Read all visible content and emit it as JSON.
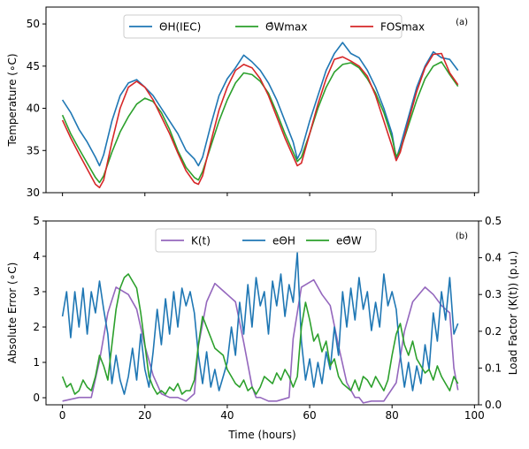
{
  "chart_data": [
    {
      "type": "line",
      "panel_label": "(a)",
      "title": "",
      "xlabel": "",
      "ylabel": "Temperature (∘C)",
      "xlim": [
        -4,
        101
      ],
      "ylim": [
        30,
        52
      ],
      "xticks": [
        0,
        20,
        40,
        60,
        80,
        100
      ],
      "yticks": [
        30,
        35,
        40,
        45,
        50
      ],
      "grid": false,
      "legend_position": "top-center",
      "legend": [
        {
          "label": "ΘH(IEC)",
          "color": "#1f77b4"
        },
        {
          "label": "Θ̂Wmax",
          "color": "#2ca02c"
        },
        {
          "label": "FOSmax",
          "color": "#d62728"
        }
      ],
      "series": [
        {
          "name": "ΘH(IEC)",
          "color": "#1f77b4",
          "x": [
            0,
            2,
            4,
            6,
            8,
            9,
            10,
            12,
            14,
            16,
            18,
            20,
            22,
            24,
            26,
            28,
            30,
            32,
            33,
            34,
            36,
            38,
            40,
            42,
            44,
            46,
            48,
            50,
            52,
            54,
            56,
            57,
            58,
            60,
            62,
            64,
            66,
            68,
            70,
            72,
            74,
            76,
            78,
            80,
            81,
            82,
            84,
            86,
            88,
            90,
            92,
            94,
            96
          ],
          "y": [
            41,
            39.5,
            37.5,
            36,
            34.2,
            33.2,
            34.5,
            38.5,
            41.5,
            43,
            43.4,
            42.5,
            41.5,
            40,
            38.5,
            37,
            35,
            34,
            33.2,
            34.2,
            38,
            41.5,
            43.5,
            44.8,
            46.3,
            45.5,
            44.5,
            43,
            41,
            38.5,
            36,
            34,
            35,
            38.5,
            41.5,
            44.5,
            46.5,
            47.8,
            46.5,
            46,
            44.5,
            42.5,
            40,
            37,
            34,
            35.5,
            39,
            42.5,
            45,
            46.7,
            46,
            45.8,
            44.5
          ]
        },
        {
          "name": "Θ̂Wmax",
          "color": "#2ca02c",
          "x": [
            0,
            2,
            4,
            6,
            8,
            9,
            10,
            12,
            14,
            16,
            18,
            20,
            22,
            24,
            26,
            28,
            30,
            32,
            33,
            34,
            36,
            38,
            40,
            42,
            44,
            46,
            48,
            50,
            52,
            54,
            56,
            57,
            58,
            60,
            62,
            64,
            66,
            68,
            70,
            72,
            74,
            76,
            78,
            80,
            81,
            82,
            84,
            86,
            88,
            90,
            92,
            94,
            96
          ],
          "y": [
            39.2,
            37,
            35.2,
            33.5,
            31.8,
            31.2,
            32,
            34.8,
            37.2,
            39,
            40.5,
            41.2,
            40.8,
            39.5,
            37.5,
            35,
            33,
            31.8,
            31.5,
            32.5,
            35.5,
            38.5,
            41,
            43,
            44.2,
            44,
            43.2,
            41.8,
            39.5,
            37,
            34.8,
            33.7,
            34.2,
            37,
            40,
            42.5,
            44.3,
            45.2,
            45.4,
            44.8,
            43.5,
            41.8,
            39.5,
            36.5,
            34.3,
            35,
            38,
            41,
            43.5,
            45,
            45.5,
            44,
            42.6
          ]
        },
        {
          "name": "FOSmax",
          "color": "#d62728",
          "x": [
            0,
            2,
            4,
            6,
            8,
            9,
            10,
            12,
            14,
            16,
            18,
            20,
            22,
            24,
            26,
            28,
            30,
            32,
            33,
            34,
            36,
            38,
            40,
            42,
            44,
            46,
            48,
            50,
            52,
            54,
            56,
            57,
            58,
            60,
            62,
            64,
            66,
            68,
            70,
            72,
            74,
            76,
            78,
            80,
            81,
            82,
            84,
            86,
            88,
            90,
            92,
            94,
            96
          ],
          "y": [
            38.6,
            36.5,
            34.6,
            32.8,
            31,
            30.6,
            31.5,
            36,
            40,
            42.5,
            43.2,
            42.5,
            41,
            39,
            37,
            34.7,
            32.6,
            31.2,
            31,
            32,
            36,
            39.8,
            42.5,
            44.5,
            45.2,
            44.8,
            43.5,
            41.5,
            39,
            36.5,
            34.3,
            33.2,
            33.5,
            37,
            40.5,
            43.5,
            45.8,
            46.1,
            45.6,
            45,
            43.8,
            41.5,
            38.5,
            35.5,
            33.8,
            34.8,
            38.5,
            42,
            44.8,
            46.4,
            46.5,
            44.2,
            42.8
          ]
        }
      ]
    },
    {
      "type": "line",
      "panel_label": "(b)",
      "title": "",
      "xlabel": "Time (hours)",
      "ylabel": "Absolute Error (∘C)",
      "ylabel_right": "Load Factor  (K(t)) (p.u.)",
      "xlim": [
        -4,
        101
      ],
      "ylim": [
        -0.2,
        5
      ],
      "ylim_right": [
        0,
        0.5
      ],
      "xticks": [
        0,
        20,
        40,
        60,
        80,
        100
      ],
      "yticks": [
        0,
        1,
        2,
        3,
        4,
        5
      ],
      "yticks_right": [
        "0.0",
        "0.1",
        "0.2",
        "0.3",
        "0.4",
        "0.5"
      ],
      "grid": false,
      "legend_position": "top-center",
      "legend": [
        {
          "label": "K(t)",
          "color": "#9467bd"
        },
        {
          "label": "eΘH",
          "color": "#1f77b4"
        },
        {
          "label": "eΘ̂W",
          "color": "#2ca02c"
        }
      ],
      "series": [
        {
          "name": "K(t)",
          "color": "#9467bd",
          "axis": "right",
          "x": [
            0,
            4,
            7,
            9,
            11,
            13,
            16,
            18,
            20,
            22,
            24,
            26,
            28,
            30,
            32,
            33,
            35,
            37,
            40,
            42,
            44,
            46,
            47,
            48,
            50,
            52,
            55,
            56,
            58,
            61,
            63,
            65,
            67,
            69,
            71,
            72,
            73,
            75,
            78,
            81,
            83,
            85,
            88,
            90,
            92,
            94,
            95,
            96
          ],
          "y": [
            0.01,
            0.02,
            0.02,
            0.12,
            0.25,
            0.32,
            0.3,
            0.26,
            0.16,
            0.08,
            0.03,
            0.02,
            0.02,
            0.01,
            0.03,
            0.16,
            0.28,
            0.33,
            0.3,
            0.28,
            0.17,
            0.05,
            0.02,
            0.02,
            0.01,
            0.01,
            0.02,
            0.18,
            0.32,
            0.34,
            0.3,
            0.27,
            0.16,
            0.06,
            0.02,
            0.02,
            0.005,
            0.01,
            0.01,
            0.06,
            0.2,
            0.28,
            0.32,
            0.3,
            0.27,
            0.25,
            0.1,
            0.04
          ]
        },
        {
          "name": "eΘH",
          "color": "#1f77b4",
          "axis": "left",
          "x": [
            0,
            1,
            2,
            3,
            4,
            5,
            6,
            7,
            8,
            9,
            10,
            11,
            12,
            13,
            14,
            15,
            16,
            17,
            18,
            19,
            20,
            21,
            22,
            23,
            24,
            25,
            26,
            27,
            28,
            29,
            30,
            31,
            32,
            33,
            34,
            35,
            36,
            37,
            38,
            39,
            40,
            41,
            42,
            43,
            44,
            45,
            46,
            47,
            48,
            49,
            50,
            51,
            52,
            53,
            54,
            55,
            56,
            57,
            58,
            59,
            60,
            61,
            62,
            63,
            64,
            65,
            66,
            67,
            68,
            69,
            70,
            71,
            72,
            73,
            74,
            75,
            76,
            77,
            78,
            79,
            80,
            81,
            82,
            83,
            84,
            85,
            86,
            87,
            88,
            89,
            90,
            91,
            92,
            93,
            94,
            95,
            96
          ],
          "y": [
            2.3,
            3.0,
            1.7,
            3.0,
            2.0,
            3.1,
            1.8,
            3.0,
            2.4,
            3.3,
            2.5,
            1.8,
            0.4,
            1.2,
            0.5,
            0.1,
            0.6,
            1.4,
            0.5,
            1.8,
            0.8,
            0.3,
            1.3,
            2.5,
            1.5,
            2.8,
            1.8,
            3.0,
            2.0,
            3.1,
            2.6,
            3.0,
            2.4,
            1.2,
            0.4,
            1.3,
            0.3,
            0.8,
            0.2,
            0.6,
            1.0,
            2.0,
            1.2,
            2.7,
            1.8,
            3.2,
            2.0,
            3.4,
            2.6,
            3.0,
            1.8,
            3.3,
            2.6,
            3.5,
            2.3,
            3.2,
            2.7,
            4.1,
            1.6,
            0.5,
            1.1,
            0.3,
            1.0,
            0.4,
            1.3,
            0.8,
            2.0,
            1.2,
            3.0,
            2.0,
            3.1,
            2.2,
            3.4,
            2.5,
            3.0,
            1.9,
            2.7,
            2.0,
            3.5,
            2.6,
            3.0,
            2.5,
            1.2,
            0.3,
            1.0,
            0.2,
            0.9,
            0.4,
            1.5,
            0.8,
            2.4,
            1.6,
            3.0,
            2.2,
            3.4,
            1.8,
            2.1
          ]
        },
        {
          "name": "eΘ̂W",
          "color": "#2ca02c",
          "axis": "left",
          "x": [
            0,
            1,
            2,
            3,
            4,
            5,
            6,
            7,
            8,
            9,
            10,
            11,
            12,
            13,
            14,
            15,
            16,
            17,
            18,
            19,
            20,
            21,
            22,
            23,
            24,
            25,
            26,
            27,
            28,
            29,
            30,
            31,
            32,
            33,
            34,
            35,
            36,
            37,
            38,
            39,
            40,
            41,
            42,
            43,
            44,
            45,
            46,
            47,
            48,
            49,
            50,
            51,
            52,
            53,
            54,
            55,
            56,
            57,
            58,
            59,
            60,
            61,
            62,
            63,
            64,
            65,
            66,
            67,
            68,
            69,
            70,
            71,
            72,
            73,
            74,
            75,
            76,
            77,
            78,
            79,
            80,
            81,
            82,
            83,
            84,
            85,
            86,
            87,
            88,
            89,
            90,
            91,
            92,
            93,
            94,
            95,
            96
          ],
          "y": [
            0.6,
            0.3,
            0.4,
            0.1,
            0.2,
            0.5,
            0.3,
            0.2,
            0.6,
            1.2,
            0.9,
            0.5,
            1.5,
            2.5,
            3.1,
            3.4,
            3.5,
            3.3,
            3.1,
            2.4,
            1.5,
            0.6,
            0.3,
            0.1,
            0.2,
            0.1,
            0.3,
            0.2,
            0.4,
            0.1,
            0.2,
            0.2,
            0.5,
            1.5,
            2.3,
            2.0,
            1.7,
            1.4,
            1.3,
            1.2,
            0.8,
            0.6,
            0.4,
            0.3,
            0.5,
            0.2,
            0.3,
            0.1,
            0.3,
            0.6,
            0.5,
            0.4,
            0.7,
            0.5,
            0.8,
            0.6,
            0.3,
            0.6,
            2.0,
            2.7,
            2.2,
            1.6,
            1.8,
            1.3,
            1.6,
            0.9,
            1.1,
            0.6,
            0.4,
            0.3,
            0.2,
            0.5,
            0.2,
            0.6,
            0.5,
            0.3,
            0.6,
            0.4,
            0.2,
            0.5,
            1.2,
            1.8,
            2.1,
            1.5,
            1.2,
            1.6,
            1.1,
            0.9,
            0.7,
            0.8,
            0.5,
            0.9,
            0.6,
            0.4,
            0.2,
            0.6,
            0.4
          ]
        }
      ]
    }
  ]
}
